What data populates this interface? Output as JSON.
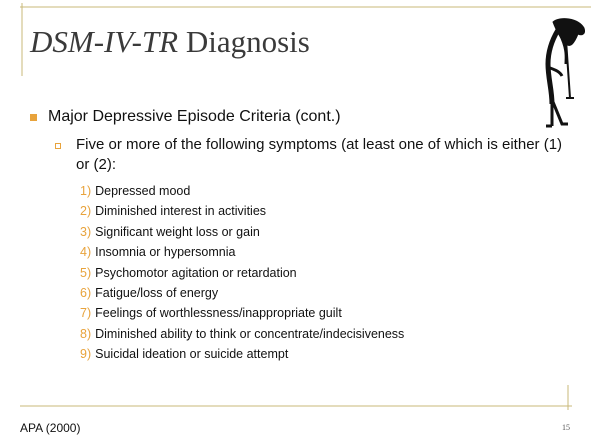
{
  "header": {
    "title_italic": "DSM-IV-TR",
    "title_rest": "Diagnosis"
  },
  "bullet": "Major Depressive Episode Criteria (cont.)",
  "sub_bullet": "Five or more of the following symptoms (at least one of which is either (1) or (2):",
  "items": [
    {
      "number": "1)",
      "text": "Depressed mood"
    },
    {
      "number": "2)",
      "text": "Diminished interest in activities"
    },
    {
      "number": "3)",
      "text": "Significant weight loss or gain"
    },
    {
      "number": "4)",
      "text": "Insomnia or hypersomnia"
    },
    {
      "number": "5)",
      "text": "Psychomotor agitation or retardation"
    },
    {
      "number": "6)",
      "text": "Fatigue/loss of energy"
    },
    {
      "number": "7)",
      "text": "Feelings of worthlessness/inappropriate guilt"
    },
    {
      "number": "8)",
      "text": "Diminished ability to think or concentrate/indecisiveness"
    },
    {
      "number": "9)",
      "text": "Suicidal ideation or suicide attempt"
    }
  ],
  "footer": {
    "source": "APA (2000)",
    "page": "15"
  }
}
